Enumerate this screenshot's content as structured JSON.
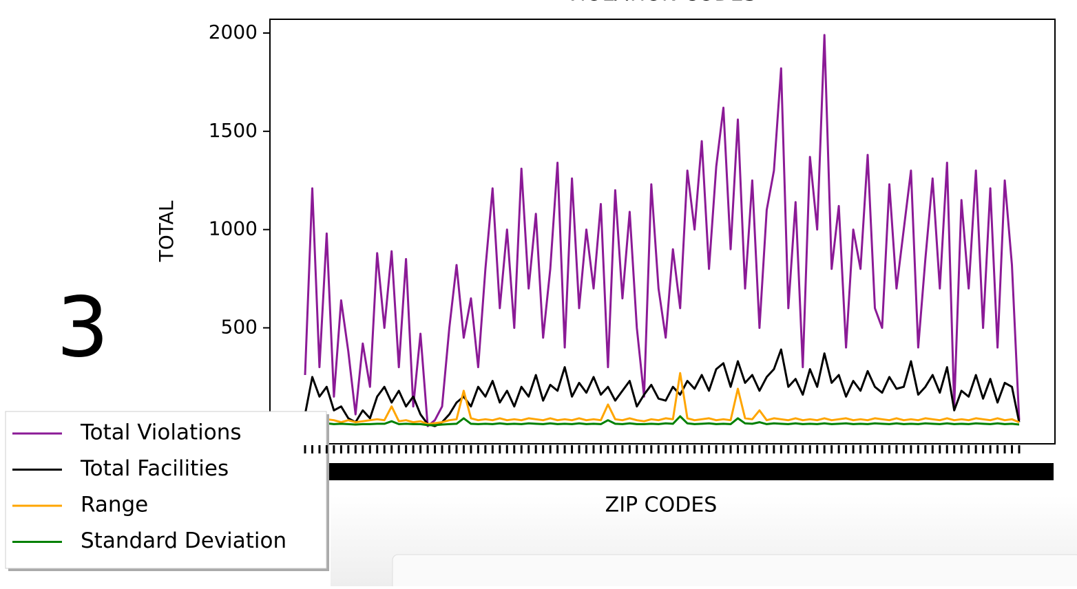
{
  "chart_data": {
    "type": "line",
    "title": "VIOLATION CODES",
    "xlabel": "ZIP CODES",
    "ylabel": "TOTAL",
    "side_label": "3",
    "categories": [
      null,
      null,
      null,
      null,
      null,
      null,
      null,
      null,
      null,
      null,
      null,
      null,
      null,
      null,
      null,
      null,
      null,
      null,
      null,
      null,
      null,
      null,
      null,
      null,
      null,
      null,
      null,
      null,
      null,
      null,
      null,
      null,
      null,
      null,
      null,
      null,
      null,
      null,
      null,
      null,
      null,
      null,
      null,
      null,
      null,
      null,
      null,
      null,
      null,
      null,
      null,
      null,
      null,
      null,
      null,
      null,
      null,
      null,
      null,
      null,
      null,
      null,
      null,
      null,
      null,
      null,
      null,
      null,
      null,
      null,
      null,
      null,
      null,
      null,
      null,
      null,
      null,
      null,
      null,
      null,
      null,
      null,
      null,
      null,
      null,
      null,
      null,
      null,
      null,
      null,
      null,
      null,
      null,
      null,
      null,
      null,
      null,
      null,
      null,
      null
    ],
    "ylim": [
      -90,
      2070
    ],
    "yticks": [
      500,
      1000,
      1500,
      2000
    ],
    "legend": "lower left",
    "series": [
      {
        "name": "Total Violations",
        "color": "#8b1a96",
        "values": [
          260,
          1210,
          300,
          980,
          150,
          640,
          380,
          60,
          420,
          200,
          880,
          500,
          890,
          300,
          850,
          100,
          470,
          0,
          30,
          100,
          500,
          820,
          450,
          650,
          300,
          800,
          1210,
          600,
          1000,
          500,
          1310,
          700,
          1080,
          450,
          800,
          1340,
          400,
          1260,
          600,
          1000,
          700,
          1130,
          300,
          1200,
          650,
          1090,
          500,
          150,
          1230,
          700,
          450,
          900,
          600,
          1300,
          1000,
          1450,
          800,
          1320,
          1620,
          900,
          1560,
          700,
          1250,
          500,
          1100,
          1300,
          1820,
          600,
          1140,
          300,
          1370,
          1000,
          1990,
          800,
          1120,
          400,
          1000,
          800,
          1380,
          600,
          500,
          1230,
          700,
          1000,
          1300,
          400,
          850,
          1260,
          700,
          1340,
          100,
          1150,
          700,
          1300,
          500,
          1210,
          400,
          1250,
          820,
          30
        ]
      },
      {
        "name": "Total Facilities",
        "color": "#000000",
        "values": [
          60,
          250,
          150,
          200,
          80,
          100,
          40,
          20,
          80,
          40,
          150,
          200,
          120,
          180,
          100,
          150,
          60,
          10,
          0,
          20,
          60,
          120,
          150,
          100,
          200,
          150,
          230,
          120,
          180,
          100,
          200,
          150,
          260,
          130,
          210,
          180,
          300,
          150,
          220,
          170,
          250,
          160,
          200,
          130,
          180,
          230,
          100,
          160,
          210,
          140,
          130,
          200,
          160,
          230,
          190,
          260,
          180,
          290,
          320,
          200,
          330,
          220,
          260,
          180,
          250,
          290,
          390,
          200,
          240,
          160,
          290,
          200,
          370,
          220,
          260,
          150,
          230,
          180,
          280,
          200,
          170,
          250,
          190,
          200,
          330,
          160,
          200,
          260,
          170,
          300,
          80,
          180,
          150,
          260,
          140,
          240,
          120,
          220,
          200,
          20
        ]
      },
      {
        "name": "Range",
        "color": "#ffa500",
        "values": [
          30,
          40,
          25,
          35,
          30,
          20,
          30,
          20,
          25,
          30,
          35,
          30,
          100,
          25,
          30,
          20,
          25,
          10,
          15,
          20,
          30,
          35,
          180,
          40,
          30,
          35,
          30,
          40,
          30,
          35,
          30,
          40,
          35,
          30,
          40,
          30,
          35,
          30,
          40,
          30,
          35,
          30,
          110,
          35,
          30,
          40,
          30,
          25,
          35,
          30,
          40,
          35,
          270,
          40,
          30,
          35,
          40,
          30,
          35,
          30,
          190,
          40,
          35,
          80,
          30,
          40,
          35,
          30,
          40,
          30,
          35,
          30,
          40,
          30,
          35,
          40,
          30,
          35,
          30,
          40,
          35,
          30,
          40,
          30,
          35,
          30,
          40,
          35,
          30,
          40,
          30,
          35,
          30,
          40,
          35,
          30,
          40,
          30,
          35,
          20
        ]
      },
      {
        "name": "Standard Deviation",
        "color": "#008000",
        "values": [
          10,
          15,
          12,
          14,
          10,
          12,
          10,
          8,
          10,
          10,
          12,
          12,
          25,
          10,
          12,
          10,
          10,
          5,
          5,
          8,
          10,
          12,
          40,
          12,
          10,
          12,
          10,
          14,
          10,
          12,
          10,
          14,
          12,
          10,
          14,
          10,
          12,
          10,
          14,
          10,
          12,
          10,
          30,
          12,
          10,
          14,
          10,
          10,
          12,
          10,
          14,
          12,
          50,
          14,
          10,
          12,
          14,
          10,
          12,
          10,
          40,
          14,
          12,
          20,
          10,
          14,
          12,
          10,
          14,
          10,
          12,
          10,
          14,
          10,
          12,
          14,
          10,
          12,
          10,
          14,
          12,
          10,
          14,
          10,
          12,
          10,
          14,
          12,
          10,
          14,
          10,
          12,
          10,
          14,
          12,
          10,
          14,
          10,
          12,
          8
        ]
      }
    ]
  }
}
